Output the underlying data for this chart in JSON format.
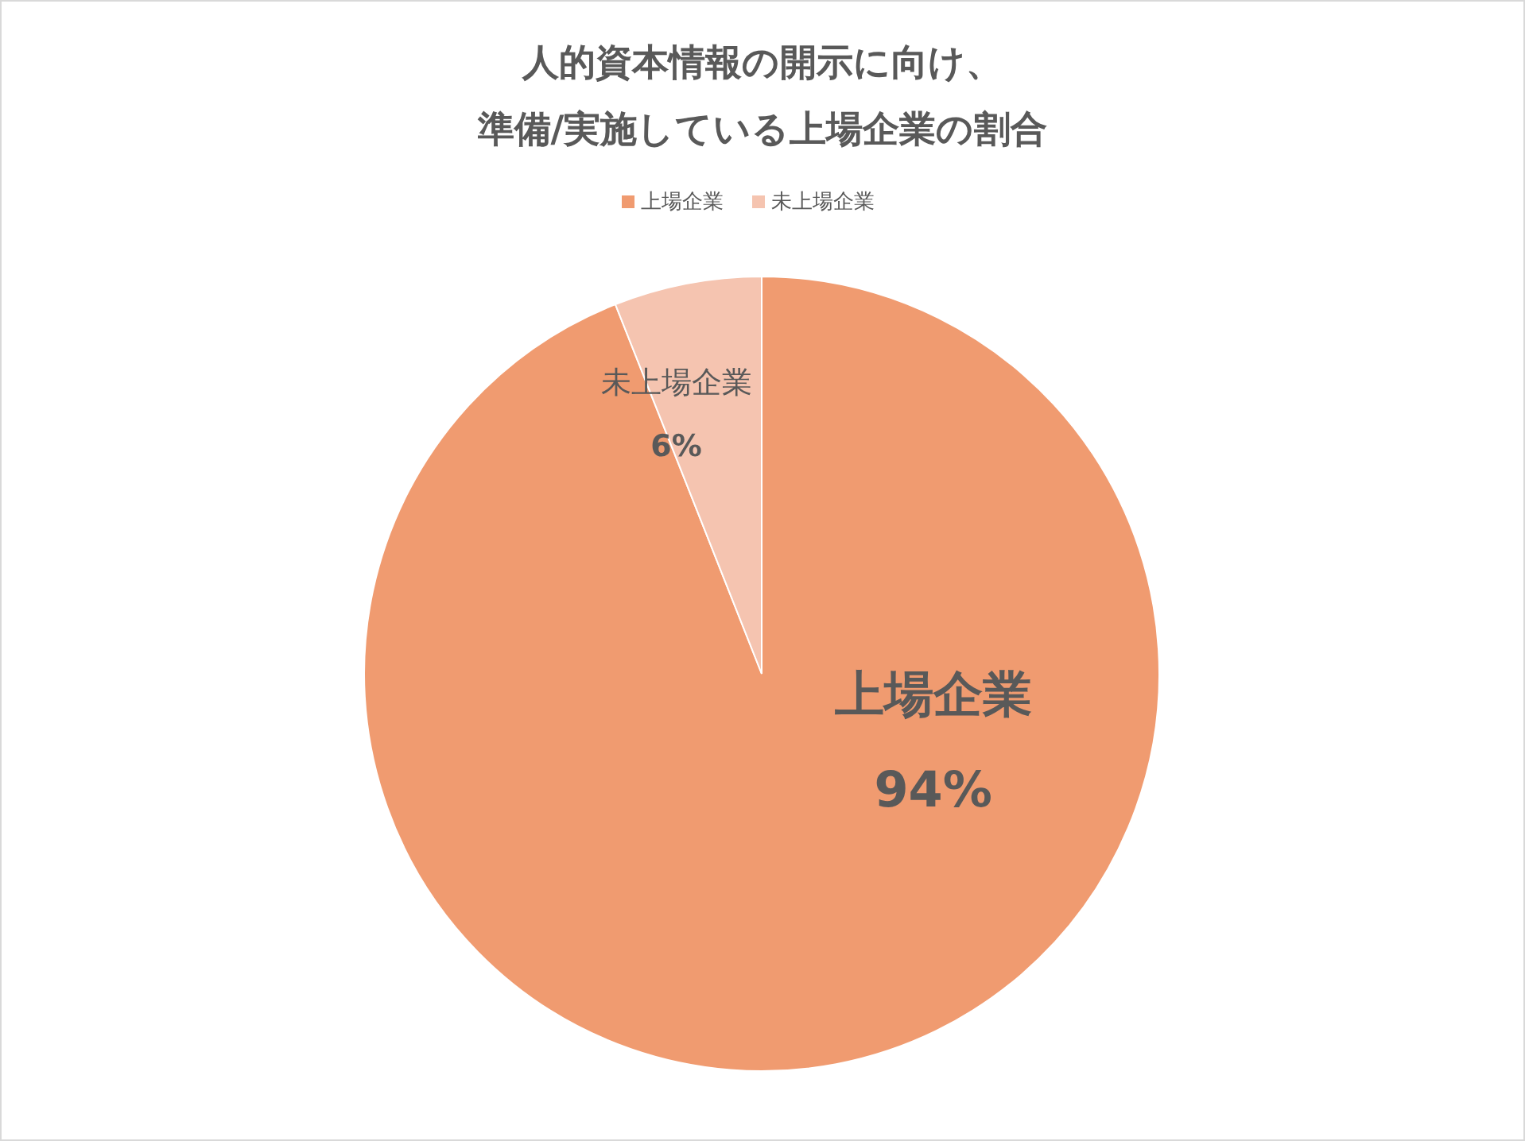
{
  "chart_data": {
    "type": "pie",
    "title": "人的資本情報の開示に向け、準備/実施している上場企業の割合",
    "categories": [
      "上場企業",
      "未上場企業"
    ],
    "values": [
      94,
      6
    ],
    "colors": [
      "#f09b70",
      "#f5c4b0"
    ],
    "value_labels": [
      "94%",
      "6%"
    ],
    "legend": "top"
  }
}
